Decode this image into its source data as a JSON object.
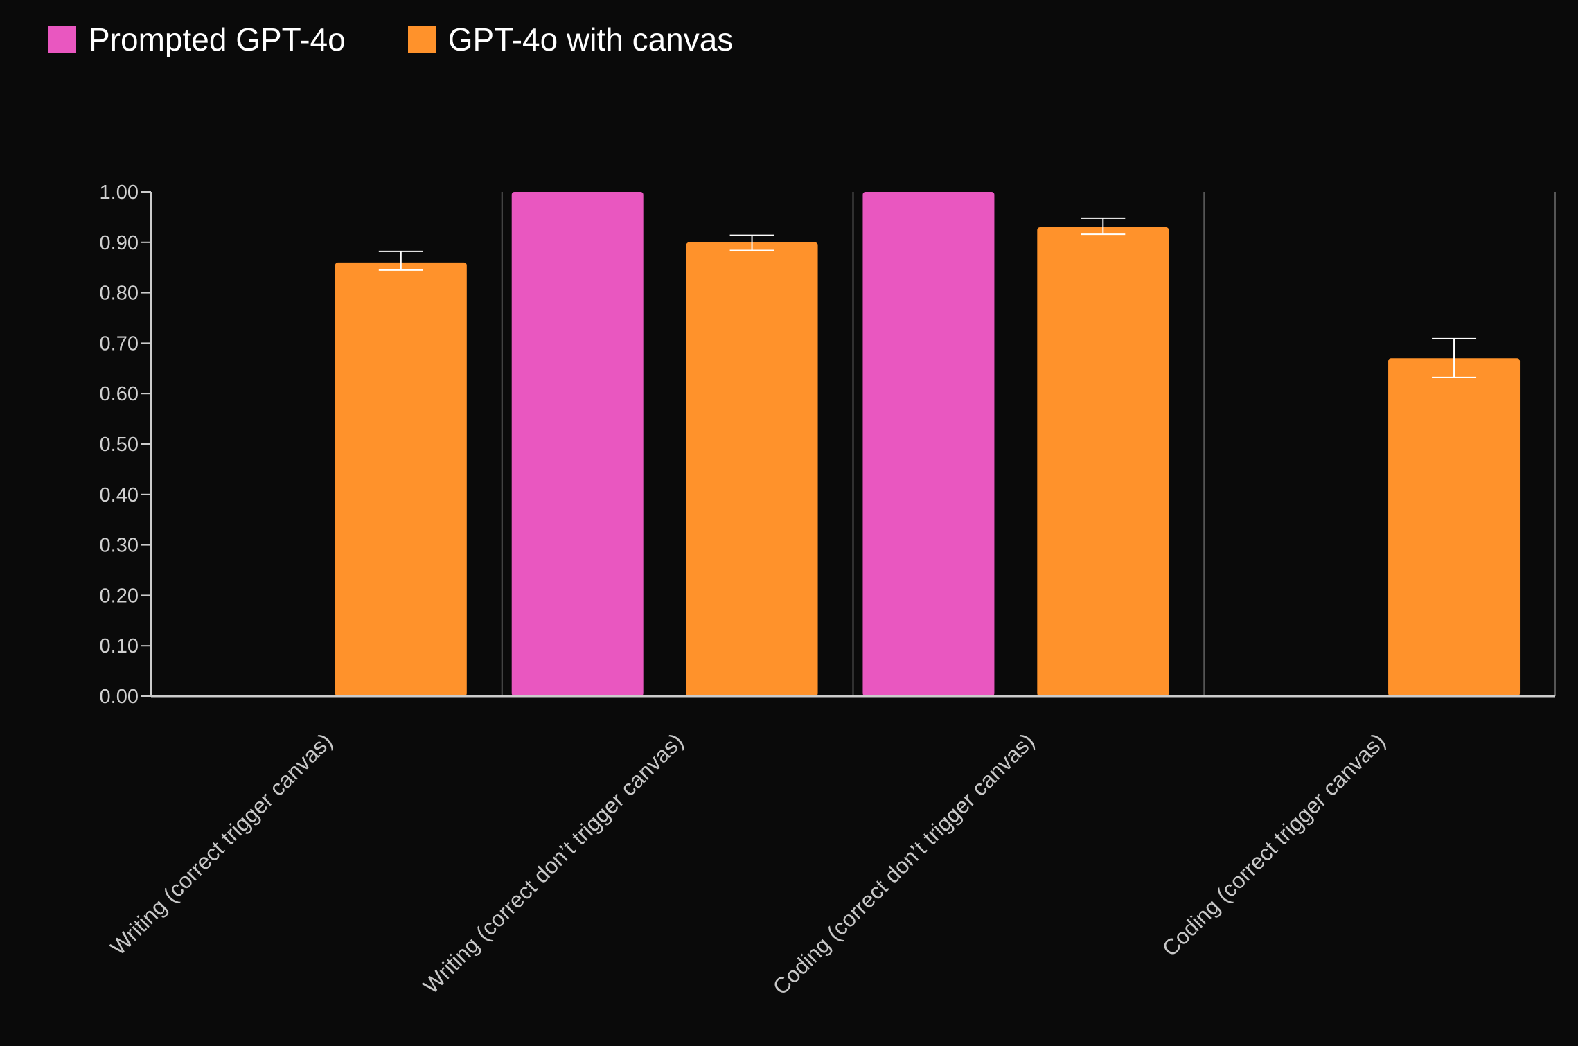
{
  "legend": [
    {
      "label": "Prompted GPT-4o",
      "color": "#e957c0"
    },
    {
      "label": "GPT-4o with canvas",
      "color": "#ff922b"
    }
  ],
  "chart_data": {
    "type": "bar",
    "categories": [
      "Writing (correct trigger canvas)",
      "Writing (correct don’t trigger canvas)",
      "Coding (correct don’t trigger canvas)",
      "Coding (correct trigger canvas)"
    ],
    "series": [
      {
        "name": "Prompted GPT-4o",
        "color": "#e957c0",
        "values": [
          0,
          1.0,
          1.0,
          0
        ]
      },
      {
        "name": "GPT-4o with canvas",
        "color": "#ff922b",
        "values": [
          0.86,
          0.9,
          0.93,
          0.67
        ],
        "error_low": [
          0.845,
          0.884,
          0.916,
          0.632
        ],
        "error_high": [
          0.882,
          0.914,
          0.948,
          0.709
        ]
      }
    ],
    "y_ticks": [
      "0.00",
      "0.10",
      "0.20",
      "0.30",
      "0.40",
      "0.50",
      "0.60",
      "0.70",
      "0.80",
      "0.90",
      "1.00"
    ],
    "ylim": [
      0,
      1.0
    ],
    "grid": false,
    "legend_position": "top-left"
  }
}
